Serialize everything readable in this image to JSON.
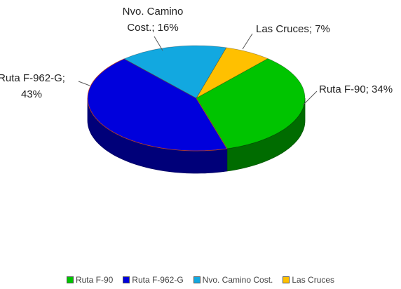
{
  "chart_data": {
    "type": "pie",
    "categories": [
      "Ruta F-90",
      "Ruta F-962-G",
      "Nvo. Camino Cost.",
      "Las Cruces"
    ],
    "values": [
      34,
      43,
      16,
      7
    ],
    "value_labels": [
      "Ruta F-90; 34%",
      "Ruta F-962-G; 43%",
      "Nvo. Camino Cost.; 16%",
      "Las Cruces; 7%"
    ],
    "colors": [
      "#00c400",
      "#0000dc",
      "#12a8e0",
      "#ffc000"
    ],
    "legend": "bottom"
  }
}
